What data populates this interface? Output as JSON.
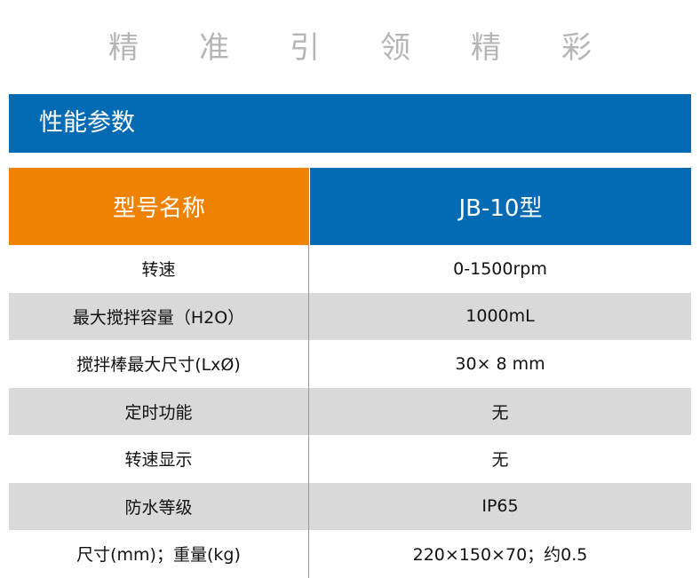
{
  "slogan": [
    "精",
    "准",
    "引",
    "领",
    "精",
    "彩"
  ],
  "section_title": "性能参数",
  "header": {
    "label": "型号名称",
    "model": "JB-10型"
  },
  "colors": {
    "blue": "#036bb4",
    "orange": "#ef8200",
    "stripe": "#d9d9d9"
  },
  "rows": [
    {
      "name": "转速",
      "value": "0-1500rpm"
    },
    {
      "name": "最大搅拌容量（H2O）",
      "value": "1000mL"
    },
    {
      "name": "搅拌棒最大尺寸(LxØ)",
      "value": "30× 8 mm"
    },
    {
      "name": "定时功能",
      "value": "无"
    },
    {
      "name": "转速显示",
      "value": "无"
    },
    {
      "name": "防水等级",
      "value": "IP65"
    },
    {
      "name": "尺寸(mm)；重量(kg)",
      "value": "220×150×70；约0.5"
    }
  ]
}
